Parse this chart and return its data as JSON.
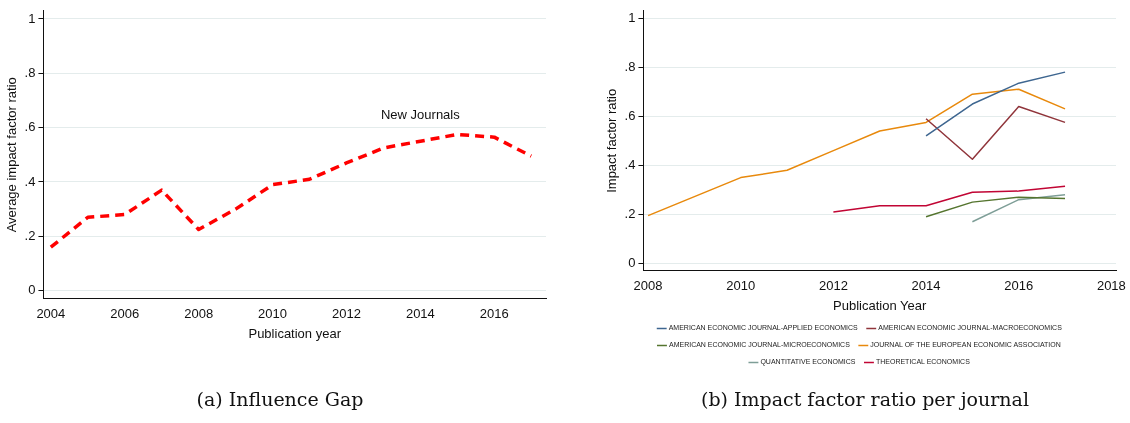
{
  "chart_data": [
    {
      "type": "line",
      "title": "(a) Influence Gap",
      "xlabel": "Publication year",
      "ylabel": "Average impact factor ratio",
      "line_style": "dashed",
      "grid": "y",
      "legend": false,
      "x": [
        2004,
        2005,
        2006,
        2007,
        2008,
        2009,
        2010,
        2011,
        2012,
        2013,
        2014,
        2015,
        2016,
        2017
      ],
      "series": [
        {
          "color": "#ff0000",
          "values": [
            0.16,
            0.27,
            0.28,
            0.37,
            0.225,
            0.3,
            0.39,
            0.41,
            0.47,
            0.525,
            0.55,
            0.575,
            0.565,
            0.495
          ]
        }
      ],
      "xlim": [
        2003.8,
        2017.4
      ],
      "xticks": [
        2004,
        2006,
        2008,
        2010,
        2012,
        2014,
        2016
      ],
      "ylim": [
        -0.03,
        1.03
      ],
      "yticks": [
        {
          "value": 0,
          "label": "0"
        },
        {
          "value": 0.2,
          "label": ".2"
        },
        {
          "value": 0.4,
          "label": ".4"
        },
        {
          "value": 0.6,
          "label": ".6"
        },
        {
          "value": 0.8,
          "label": ".8"
        },
        {
          "value": 1,
          "label": "1"
        }
      ],
      "annotations": [
        "New Journals"
      ]
    },
    {
      "type": "line",
      "title": "(b) Impact factor ratio per journal",
      "xlabel": "Publication Year",
      "ylabel": "Impact factor ratio",
      "line_style": "solid",
      "grid": "y",
      "legend": "bottom",
      "series": [
        {
          "name": "AMERICAN ECONOMIC JOURNAL-APPLIED ECONOMICS",
          "color": "#3e6690",
          "x": [
            2014,
            2015,
            2016,
            2017
          ],
          "values": [
            0.52,
            0.65,
            0.735,
            0.78
          ]
        },
        {
          "name": "AMERICAN ECONOMIC JOURNAL-MACROECONOMICS",
          "color": "#90353b",
          "x": [
            2014,
            2015,
            2016,
            2017
          ],
          "values": [
            0.59,
            0.425,
            0.64,
            0.575
          ]
        },
        {
          "name": "AMERICAN ECONOMIC JOURNAL-MICROECONOMICS",
          "color": "#55752f",
          "x": [
            2014,
            2015,
            2016,
            2017
          ],
          "values": [
            0.19,
            0.25,
            0.27,
            0.265
          ]
        },
        {
          "name": "JOURNAL OF THE EUROPEAN ECONOMIC ASSOCIATION",
          "color": "#e8890c",
          "x": [
            2008,
            2010,
            2011,
            2012,
            2013,
            2014,
            2015,
            2016,
            2017
          ],
          "values": [
            0.195,
            0.35,
            0.38,
            0.46,
            0.54,
            0.575,
            0.69,
            0.71,
            0.63
          ]
        },
        {
          "name": "QUANTITATIVE ECONOMICS",
          "color": "#7e9e97",
          "x": [
            2015,
            2016,
            2017
          ],
          "values": [
            0.17,
            0.26,
            0.28
          ]
        },
        {
          "name": "THEORETICAL ECONOMICS",
          "color": "#c10534",
          "x": [
            2012,
            2013,
            2014,
            2015,
            2016,
            2017
          ],
          "values": [
            0.21,
            0.235,
            0.235,
            0.29,
            0.295,
            0.315
          ]
        }
      ],
      "xlim": [
        2007.9,
        2018.1
      ],
      "xticks": [
        2008,
        2010,
        2012,
        2014,
        2016,
        2018
      ],
      "ylim": [
        -0.03,
        1.03
      ],
      "yticks": [
        {
          "value": 0,
          "label": "0"
        },
        {
          "value": 0.2,
          "label": ".2"
        },
        {
          "value": 0.4,
          "label": ".4"
        },
        {
          "value": 0.6,
          "label": ".6"
        },
        {
          "value": 0.8,
          "label": ".8"
        },
        {
          "value": 1,
          "label": "1"
        }
      ]
    }
  ]
}
